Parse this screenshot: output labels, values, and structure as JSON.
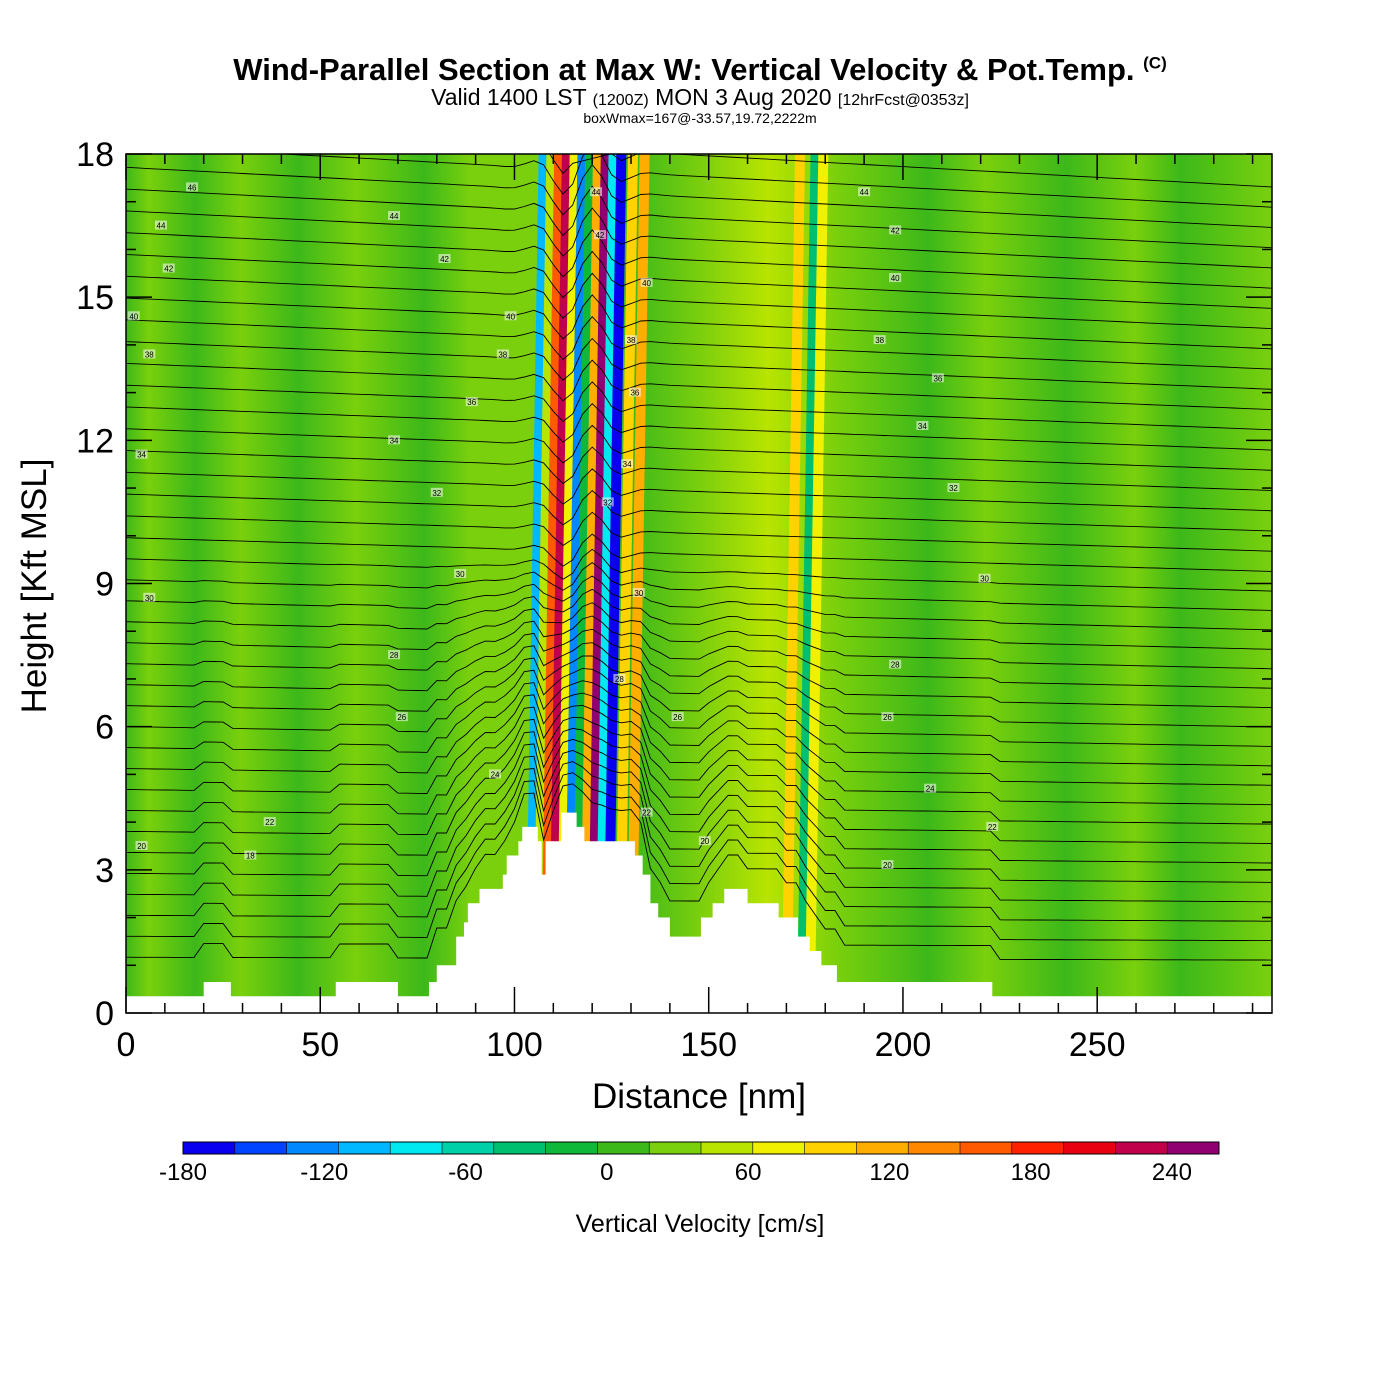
{
  "title": {
    "main": "Wind-Parallel Section at Max W: Vertical Velocity & Pot.Temp.",
    "copyright": "(C)",
    "valid_prefix": "Valid 1400 LST",
    "valid_utc": "(1200Z)",
    "valid_date": "MON 3 Aug 2020",
    "forecast": "[12hrFcst@0353z]",
    "box_info": "boxWmax=167@-33.57,19.72,2222m"
  },
  "chart_data": {
    "type": "contour",
    "xlabel": "Distance [nm]",
    "ylabel": "Height [Kft MSL]",
    "xlim": [
      0,
      295
    ],
    "ylim": [
      0,
      18
    ],
    "x_ticks": [
      "0",
      "50",
      "100",
      "150",
      "200",
      "250"
    ],
    "y_ticks": [
      "0",
      "3",
      "6",
      "9",
      "12",
      "15",
      "18"
    ],
    "x_tick_values": [
      0,
      50,
      100,
      150,
      200,
      250
    ],
    "y_tick_values": [
      0,
      3,
      6,
      9,
      12,
      15,
      18
    ],
    "colorbar": {
      "title": "Vertical Velocity [cm/s]",
      "tick_labels": [
        "-180",
        "-120",
        "-60",
        "0",
        "60",
        "120",
        "180",
        "240"
      ],
      "tick_values": [
        -180,
        -120,
        -60,
        0,
        60,
        120,
        180,
        240
      ],
      "levels": [
        -180,
        260
      ],
      "step": 20,
      "colors": [
        "#0a00f0",
        "#0044ff",
        "#0088ff",
        "#00b8ff",
        "#00e8f0",
        "#00d0a8",
        "#00c070",
        "#10b83a",
        "#3cb81a",
        "#7ad00c",
        "#b8e400",
        "#f0f000",
        "#ffd200",
        "#ffae00",
        "#ff8800",
        "#ff5a00",
        "#ff2000",
        "#e80010",
        "#c0004a",
        "#900070"
      ]
    },
    "wave_bands": [
      {
        "x": 104,
        "w": -120
      },
      {
        "x": 106,
        "w": 20
      },
      {
        "x": 108,
        "w": 120
      },
      {
        "x": 110,
        "w": 180
      },
      {
        "x": 112,
        "w": 40
      },
      {
        "x": 114,
        "w": -140
      },
      {
        "x": 116,
        "w": -40
      },
      {
        "x": 118,
        "w": 80
      },
      {
        "x": 120,
        "w": 200
      },
      {
        "x": 122,
        "w": -100
      },
      {
        "x": 124,
        "w": -180
      },
      {
        "x": 127,
        "w": 60
      },
      {
        "x": 130,
        "w": 80
      },
      {
        "x": 170,
        "w": 60
      },
      {
        "x": 174,
        "w": -60
      },
      {
        "x": 176,
        "w": 50
      }
    ],
    "terrain": [
      {
        "x": 0,
        "h": 0.35
      },
      {
        "x": 19,
        "h": 0.35
      },
      {
        "x": 20,
        "h": 0.65
      },
      {
        "x": 26,
        "h": 0.65
      },
      {
        "x": 27,
        "h": 0.35
      },
      {
        "x": 53,
        "h": 0.35
      },
      {
        "x": 54,
        "h": 0.65
      },
      {
        "x": 69,
        "h": 0.65
      },
      {
        "x": 70,
        "h": 0.35
      },
      {
        "x": 77,
        "h": 0.35
      },
      {
        "x": 78,
        "h": 0.65
      },
      {
        "x": 79,
        "h": 0.65
      },
      {
        "x": 80,
        "h": 1.0
      },
      {
        "x": 84,
        "h": 1.0
      },
      {
        "x": 85,
        "h": 1.6
      },
      {
        "x": 86,
        "h": 1.6
      },
      {
        "x": 87,
        "h": 1.9
      },
      {
        "x": 88,
        "h": 2.3
      },
      {
        "x": 91,
        "h": 2.6
      },
      {
        "x": 97,
        "h": 2.9
      },
      {
        "x": 98,
        "h": 3.3
      },
      {
        "x": 101,
        "h": 3.6
      },
      {
        "x": 102,
        "h": 3.9
      },
      {
        "x": 105,
        "h": 3.9
      },
      {
        "x": 106,
        "h": 3.6
      },
      {
        "x": 107,
        "h": 2.9
      },
      {
        "x": 108,
        "h": 3.6
      },
      {
        "x": 111,
        "h": 3.6
      },
      {
        "x": 112,
        "h": 4.2
      },
      {
        "x": 115,
        "h": 4.2
      },
      {
        "x": 116,
        "h": 3.9
      },
      {
        "x": 118,
        "h": 3.6
      },
      {
        "x": 128,
        "h": 3.6
      },
      {
        "x": 131,
        "h": 3.3
      },
      {
        "x": 133,
        "h": 2.9
      },
      {
        "x": 135,
        "h": 2.3
      },
      {
        "x": 137,
        "h": 2.0
      },
      {
        "x": 140,
        "h": 1.6
      },
      {
        "x": 146,
        "h": 1.6
      },
      {
        "x": 148,
        "h": 2.0
      },
      {
        "x": 151,
        "h": 2.3
      },
      {
        "x": 154,
        "h": 2.6
      },
      {
        "x": 158,
        "h": 2.6
      },
      {
        "x": 160,
        "h": 2.3
      },
      {
        "x": 165,
        "h": 2.3
      },
      {
        "x": 168,
        "h": 2.0
      },
      {
        "x": 173,
        "h": 1.6
      },
      {
        "x": 176,
        "h": 1.3
      },
      {
        "x": 179,
        "h": 1.0
      },
      {
        "x": 183,
        "h": 0.65
      },
      {
        "x": 222,
        "h": 0.65
      },
      {
        "x": 223,
        "h": 0.35
      },
      {
        "x": 295,
        "h": 0.35
      }
    ],
    "theta_levels": [
      16,
      18,
      20,
      22,
      24,
      26,
      28,
      30,
      32,
      34,
      36,
      38,
      40,
      42,
      44,
      46
    ],
    "contour_labels": [
      {
        "x": 17,
        "y": 17.3,
        "text": "46"
      },
      {
        "x": 9,
        "y": 16.5,
        "text": "44"
      },
      {
        "x": 11,
        "y": 15.6,
        "text": "42"
      },
      {
        "x": 2,
        "y": 14.6,
        "text": "40"
      },
      {
        "x": 6,
        "y": 13.8,
        "text": "38"
      },
      {
        "x": 4,
        "y": 11.7,
        "text": "34"
      },
      {
        "x": 6,
        "y": 8.7,
        "text": "30"
      },
      {
        "x": 4,
        "y": 3.5,
        "text": "20"
      },
      {
        "x": 32,
        "y": 3.3,
        "text": "18"
      },
      {
        "x": 37,
        "y": 4.0,
        "text": "22"
      },
      {
        "x": 69,
        "y": 16.7,
        "text": "44"
      },
      {
        "x": 82,
        "y": 15.8,
        "text": "42"
      },
      {
        "x": 99,
        "y": 14.6,
        "text": "40"
      },
      {
        "x": 97,
        "y": 13.8,
        "text": "38"
      },
      {
        "x": 89,
        "y": 12.8,
        "text": "36"
      },
      {
        "x": 69,
        "y": 12.0,
        "text": "34"
      },
      {
        "x": 80,
        "y": 10.9,
        "text": "32"
      },
      {
        "x": 86,
        "y": 9.2,
        "text": "30"
      },
      {
        "x": 69,
        "y": 7.5,
        "text": "28"
      },
      {
        "x": 71,
        "y": 6.2,
        "text": "26"
      },
      {
        "x": 95,
        "y": 5.0,
        "text": "24"
      },
      {
        "x": 121,
        "y": 17.2,
        "text": "44"
      },
      {
        "x": 122,
        "y": 16.3,
        "text": "42"
      },
      {
        "x": 134,
        "y": 15.3,
        "text": "40"
      },
      {
        "x": 130,
        "y": 14.1,
        "text": "38"
      },
      {
        "x": 131,
        "y": 13.0,
        "text": "36"
      },
      {
        "x": 129,
        "y": 11.5,
        "text": "34"
      },
      {
        "x": 124,
        "y": 10.7,
        "text": "32"
      },
      {
        "x": 132,
        "y": 8.8,
        "text": "30"
      },
      {
        "x": 127,
        "y": 7.0,
        "text": "28"
      },
      {
        "x": 142,
        "y": 6.2,
        "text": "26"
      },
      {
        "x": 134,
        "y": 4.2,
        "text": "22"
      },
      {
        "x": 149,
        "y": 3.6,
        "text": "20"
      },
      {
        "x": 190,
        "y": 17.2,
        "text": "44"
      },
      {
        "x": 198,
        "y": 16.4,
        "text": "42"
      },
      {
        "x": 198,
        "y": 15.4,
        "text": "40"
      },
      {
        "x": 194,
        "y": 14.1,
        "text": "38"
      },
      {
        "x": 209,
        "y": 13.3,
        "text": "36"
      },
      {
        "x": 205,
        "y": 12.3,
        "text": "34"
      },
      {
        "x": 213,
        "y": 11.0,
        "text": "32"
      },
      {
        "x": 221,
        "y": 9.1,
        "text": "30"
      },
      {
        "x": 198,
        "y": 7.3,
        "text": "28"
      },
      {
        "x": 196,
        "y": 6.2,
        "text": "26"
      },
      {
        "x": 207,
        "y": 4.7,
        "text": "24"
      },
      {
        "x": 223,
        "y": 3.9,
        "text": "22"
      },
      {
        "x": 196,
        "y": 3.1,
        "text": "20"
      }
    ]
  }
}
